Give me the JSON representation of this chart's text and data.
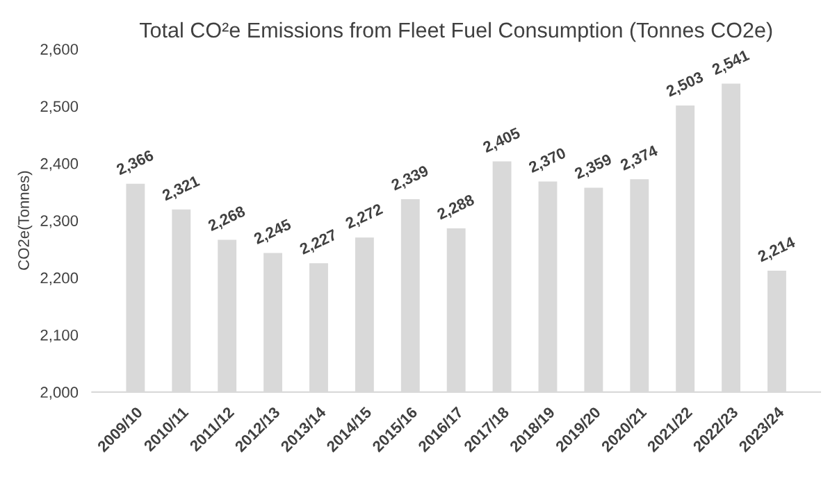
{
  "chart_data": {
    "type": "bar",
    "title": "Total CO²e Emissions from Fleet Fuel Consumption (Tonnes CO2e)",
    "ylabel": "CO2e(Tonnes)",
    "categories": [
      "2009/10",
      "2010/11",
      "2011/12",
      "2012/13",
      "2013/14",
      "2014/15",
      "2015/16",
      "2016/17",
      "2017/18",
      "2018/19",
      "2019/20",
      "2020/21",
      "2021/22",
      "2022/23",
      "2023/24"
    ],
    "values": [
      2366,
      2321,
      2268,
      2245,
      2227,
      2272,
      2339,
      2288,
      2405,
      2370,
      2359,
      2374,
      2503,
      2541,
      2214
    ],
    "value_labels": [
      "2,366",
      "2,321",
      "2,268",
      "2,245",
      "2,227",
      "2,272",
      "2,339",
      "2,288",
      "2,405",
      "2,370",
      "2,359",
      "2,374",
      "2,503",
      "2,541",
      "2,214"
    ],
    "color": "#d9d9d9",
    "ylim": [
      2000,
      2600
    ],
    "yticks": [
      {
        "value": 2000,
        "label": "2,000"
      },
      {
        "value": 2100,
        "label": "2,100"
      },
      {
        "value": 2200,
        "label": "2,200"
      },
      {
        "value": 2300,
        "label": "2,300"
      },
      {
        "value": 2400,
        "label": "2,400"
      },
      {
        "value": 2500,
        "label": "2,500"
      },
      {
        "value": 2600,
        "label": "2,600"
      }
    ],
    "grid": false,
    "legend": false
  }
}
